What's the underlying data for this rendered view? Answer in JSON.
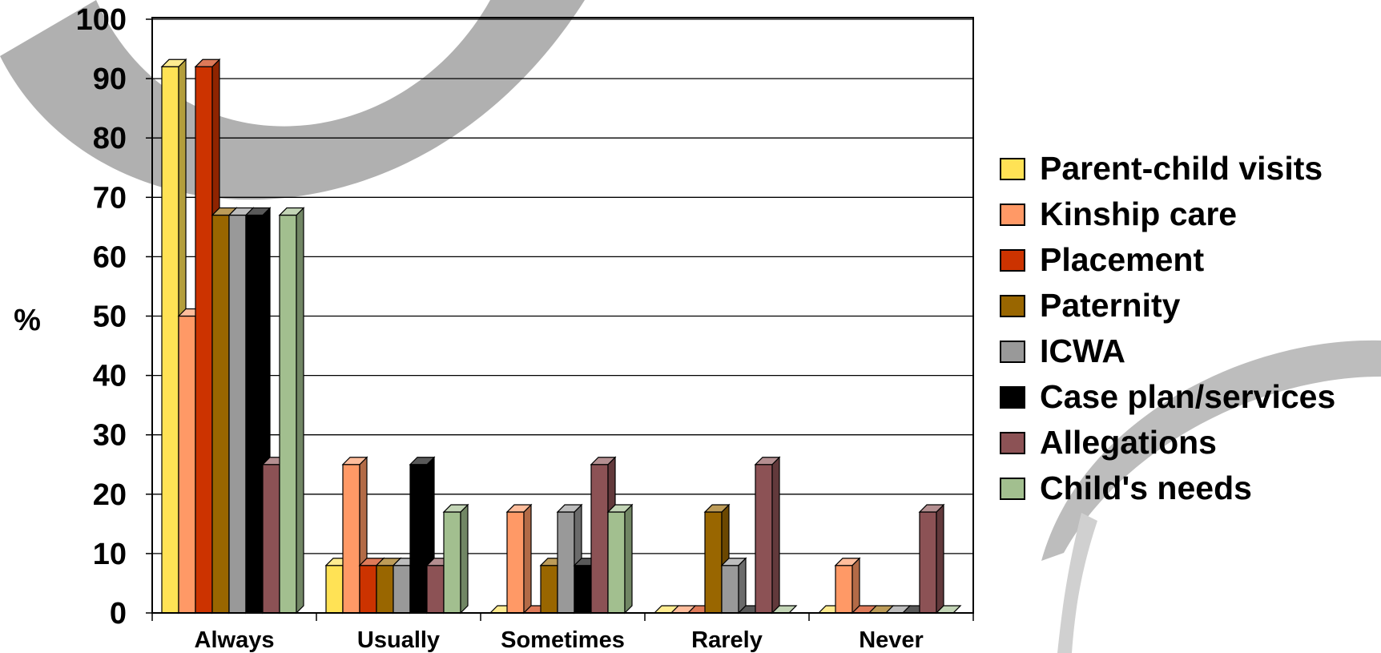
{
  "chart_data": {
    "type": "bar",
    "ylabel": "%",
    "ylim": [
      0,
      100
    ],
    "yticks": [
      "0",
      "10",
      "20",
      "30",
      "40",
      "50",
      "60",
      "70",
      "80",
      "90",
      "100"
    ],
    "grid": true,
    "legend_position": "right",
    "categories": [
      "Always",
      "Usually",
      "Sometimes",
      "Rarely",
      "Never"
    ],
    "series": [
      {
        "name": "Parent-child visits",
        "color": "#FFE255",
        "values": [
          92,
          8,
          0,
          0,
          0
        ]
      },
      {
        "name": "Kinship care",
        "color": "#FF9966",
        "values": [
          50,
          25,
          17,
          0,
          8
        ]
      },
      {
        "name": "Placement",
        "color": "#CC3300",
        "values": [
          92,
          8,
          0,
          0,
          0
        ]
      },
      {
        "name": "Paternity",
        "color": "#996600",
        "values": [
          67,
          8,
          8,
          17,
          0
        ]
      },
      {
        "name": "ICWA",
        "color": "#999999",
        "values": [
          67,
          8,
          17,
          8,
          0
        ]
      },
      {
        "name": "Case plan/services",
        "color": "#000000",
        "values": [
          67,
          25,
          8,
          0,
          0
        ]
      },
      {
        "name": "Allegations",
        "color": "#8C5255",
        "values": [
          25,
          8,
          25,
          25,
          17
        ]
      },
      {
        "name": "Child's needs",
        "color": "#A2BF8F",
        "values": [
          67,
          17,
          17,
          0,
          0
        ]
      }
    ]
  }
}
